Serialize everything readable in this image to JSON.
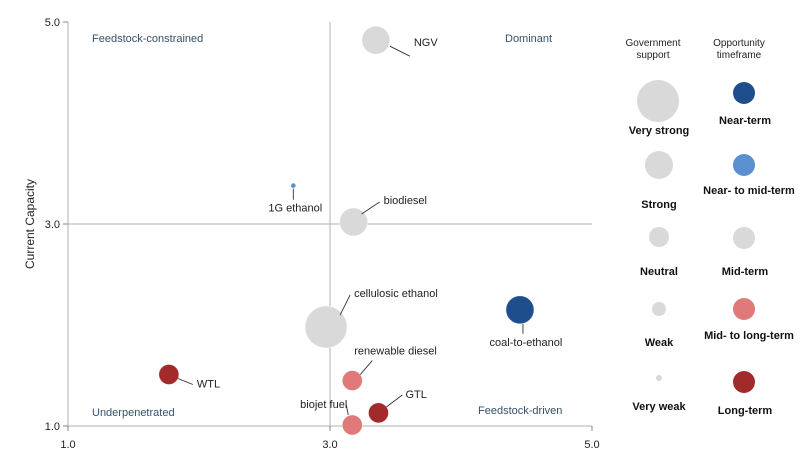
{
  "colors": {
    "light_gray": "#d9d9d9",
    "near_term": "#1f4e8c",
    "near_to_mid": "#5b8fd0",
    "mid_term": "#d9d9d9",
    "mid_to_long": "#e07a7a",
    "long_term": "#a32a2a",
    "quadrant_text": "#35506b"
  },
  "chart_data": {
    "type": "scatter",
    "subtype": "bubble",
    "title": "",
    "xlabel": "",
    "ylabel": "Current Capacity",
    "xlim": [
      1.0,
      5.0
    ],
    "ylim": [
      1.0,
      5.0
    ],
    "x_ticks": [
      "1.0",
      "3.0",
      "5.0"
    ],
    "y_ticks": [
      "1.0",
      "3.0",
      "5.0"
    ],
    "divider_x": 3.0,
    "divider_y": 3.0,
    "quadrants": {
      "top_left": "Feedstock-constrained",
      "top_right": "Dominant",
      "bottom_left": "Underpenetrated",
      "bottom_right": "Feedstock-driven"
    },
    "points": [
      {
        "label": "NGV",
        "x": 3.35,
        "y": 4.82,
        "support": "Strong",
        "timeframe": "Mid-term"
      },
      {
        "label": "1G ethanol",
        "x": 2.72,
        "y": 3.38,
        "support": "Very weak",
        "timeframe": "Near- to mid-term"
      },
      {
        "label": "biodiesel",
        "x": 3.18,
        "y": 3.02,
        "support": "Strong",
        "timeframe": "Mid-term"
      },
      {
        "label": "cellulosic ethanol",
        "x": 2.97,
        "y": 1.98,
        "support": "Very strong",
        "timeframe": "Mid-term"
      },
      {
        "label": "coal-to-ethanol",
        "x": 4.45,
        "y": 2.15,
        "support": "Strong",
        "timeframe": "Near-term"
      },
      {
        "label": "renewable diesel",
        "x": 3.17,
        "y": 1.45,
        "support": "Neutral",
        "timeframe": "Mid- to long-term"
      },
      {
        "label": "WTL",
        "x": 1.77,
        "y": 1.51,
        "support": "Neutral",
        "timeframe": "Long-term"
      },
      {
        "label": "GTL",
        "x": 3.37,
        "y": 1.13,
        "support": "Neutral",
        "timeframe": "Long-term"
      },
      {
        "label": "biojet fuel",
        "x": 3.17,
        "y": 1.01,
        "support": "Neutral",
        "timeframe": "Mid- to long-term"
      }
    ],
    "legend": {
      "support_title": "Government support",
      "timeframe_title": "Opportunity timeframe",
      "support_levels": [
        "Very strong",
        "Strong",
        "Neutral",
        "Weak",
        "Very weak"
      ],
      "timeframes": [
        "Near-term",
        "Near- to mid-term",
        "Mid-term",
        "Mid- to long-term",
        "Long-term"
      ]
    }
  }
}
